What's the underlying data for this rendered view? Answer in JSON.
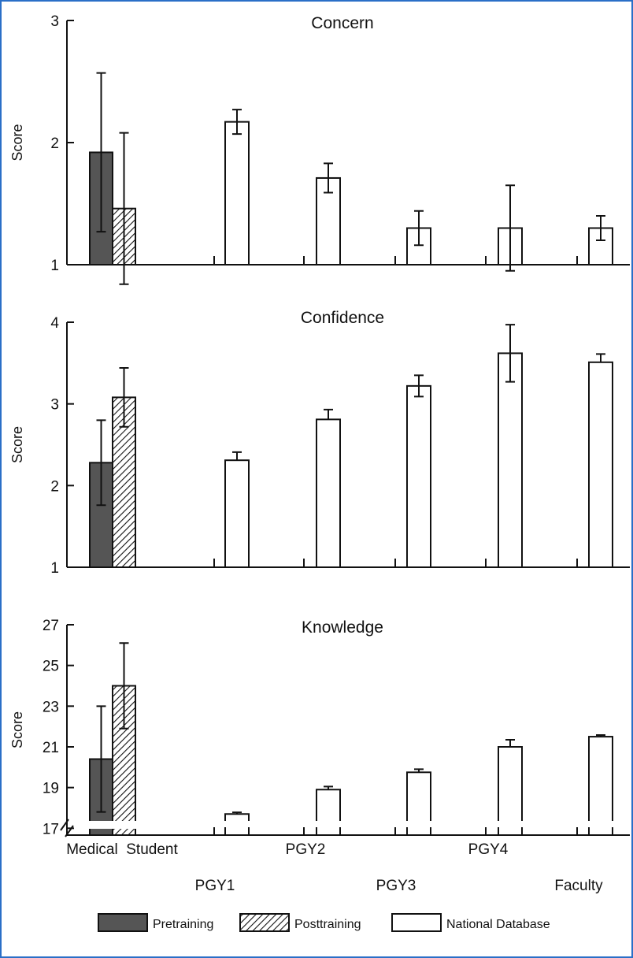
{
  "colors": {
    "frame": "#2a6fc7",
    "pretraining": "#555555",
    "national": "#ffffff",
    "ink": "#111111"
  },
  "legend": {
    "pretraining": "Pretraining",
    "posttraining": "Posttraining",
    "national": "National Database"
  },
  "groups": {
    "row1": [
      "Medical  Student",
      "PGY2",
      "PGY4"
    ],
    "row2": [
      "PGY1",
      "PGY3",
      "Faculty"
    ]
  },
  "chart_data": [
    {
      "type": "bar",
      "title": "Concern",
      "ylabel": "Score",
      "ylim": [
        1,
        3
      ],
      "yticks": [
        1,
        2,
        3
      ],
      "categories": [
        "Medical Student",
        "PGY1",
        "PGY2",
        "PGY3",
        "PGY4",
        "Faculty"
      ],
      "series": [
        {
          "name": "Pretraining",
          "values": [
            1.92,
            null,
            null,
            null,
            null,
            null
          ],
          "errors": [
            0.65,
            null,
            null,
            null,
            null,
            null
          ]
        },
        {
          "name": "Posttraining",
          "values": [
            1.46,
            null,
            null,
            null,
            null,
            null
          ],
          "errors": [
            0.62,
            null,
            null,
            null,
            null,
            null
          ]
        },
        {
          "name": "National Database",
          "values": [
            null,
            2.17,
            1.71,
            1.3,
            1.3,
            1.3
          ],
          "errors": [
            null,
            0.1,
            0.12,
            0.14,
            0.35,
            0.1
          ]
        }
      ]
    },
    {
      "type": "bar",
      "title": "Confidence",
      "ylabel": "Score",
      "ylim": [
        1,
        4
      ],
      "yticks": [
        1,
        2,
        3,
        4
      ],
      "categories": [
        "Medical Student",
        "PGY1",
        "PGY2",
        "PGY3",
        "PGY4",
        "Faculty"
      ],
      "series": [
        {
          "name": "Pretraining",
          "values": [
            2.28,
            null,
            null,
            null,
            null,
            null
          ],
          "errors": [
            0.52,
            null,
            null,
            null,
            null,
            null
          ]
        },
        {
          "name": "Posttraining",
          "values": [
            3.08,
            null,
            null,
            null,
            null,
            null
          ],
          "errors": [
            0.36,
            null,
            null,
            null,
            null,
            null
          ]
        },
        {
          "name": "National Database",
          "values": [
            null,
            2.31,
            2.81,
            3.22,
            3.62,
            3.51
          ],
          "errors": [
            null,
            0.1,
            0.12,
            0.13,
            0.35,
            0.1
          ]
        }
      ]
    },
    {
      "type": "bar",
      "title": "Knowledge",
      "ylabel": "Score",
      "ylim": [
        15,
        27
      ],
      "yticks": [
        17,
        19,
        21,
        23,
        25,
        27
      ],
      "axis_break": true,
      "categories": [
        "Medical Student",
        "PGY1",
        "PGY2",
        "PGY3",
        "PGY4",
        "Faculty"
      ],
      "series": [
        {
          "name": "Pretraining",
          "values": [
            20.4,
            null,
            null,
            null,
            null,
            null
          ],
          "errors": [
            2.6,
            null,
            null,
            null,
            null,
            null
          ]
        },
        {
          "name": "Posttraining",
          "values": [
            24.0,
            null,
            null,
            null,
            null,
            null
          ],
          "errors": [
            2.1,
            null,
            null,
            null,
            null,
            null
          ]
        },
        {
          "name": "National Database",
          "values": [
            null,
            17.7,
            18.9,
            19.75,
            21.0,
            21.5
          ],
          "errors": [
            null,
            0.08,
            0.15,
            0.15,
            0.35,
            0.08
          ]
        }
      ]
    }
  ]
}
